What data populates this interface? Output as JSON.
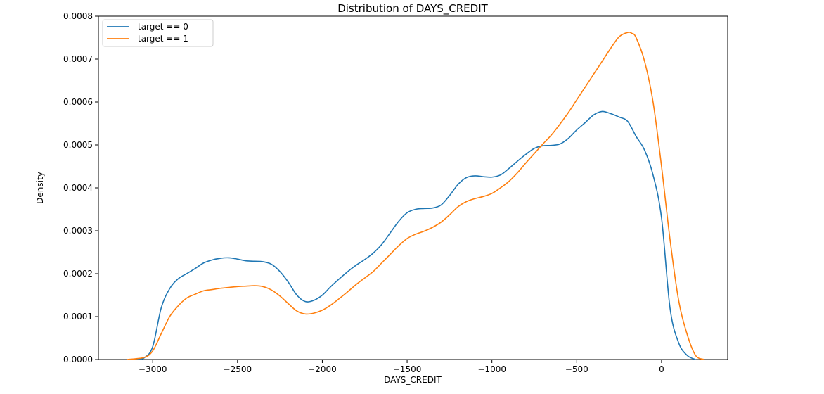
{
  "chart_data": {
    "type": "line",
    "title": "Distribution of DAYS_CREDIT",
    "xlabel": "DAYS_CREDIT",
    "ylabel": "Density",
    "xlim": [
      -3320,
      390
    ],
    "ylim": [
      0,
      0.0008
    ],
    "x_ticks": [
      -3000,
      -2500,
      -2000,
      -1500,
      -1000,
      -500,
      0
    ],
    "x_tick_labels": [
      "−3000",
      "−2500",
      "−2000",
      "−1500",
      "−1000",
      "−500",
      "0"
    ],
    "y_ticks": [
      0,
      0.0001,
      0.0002,
      0.0003,
      0.0004,
      0.0005,
      0.0006,
      0.0007,
      0.0008
    ],
    "y_tick_labels": [
      "0.0000",
      "0.0001",
      "0.0002",
      "0.0003",
      "0.0004",
      "0.0005",
      "0.0006",
      "0.0007",
      "0.0008"
    ],
    "grid": false,
    "legend_position": "top-left",
    "series": [
      {
        "name": "target == 0",
        "color": "#1f77b4",
        "points": [
          [
            -3100,
            0
          ],
          [
            -3050,
            4e-06
          ],
          [
            -3000,
            3e-05
          ],
          [
            -2950,
            0.00012
          ],
          [
            -2900,
            0.000165
          ],
          [
            -2850,
            0.000188
          ],
          [
            -2800,
            0.0002
          ],
          [
            -2750,
            0.000212
          ],
          [
            -2700,
            0.000225
          ],
          [
            -2650,
            0.000232
          ],
          [
            -2600,
            0.000236
          ],
          [
            -2550,
            0.000237
          ],
          [
            -2500,
            0.000234
          ],
          [
            -2450,
            0.00023
          ],
          [
            -2400,
            0.000229
          ],
          [
            -2350,
            0.000228
          ],
          [
            -2300,
            0.000222
          ],
          [
            -2250,
            0.000205
          ],
          [
            -2200,
            0.00018
          ],
          [
            -2150,
            0.00015
          ],
          [
            -2100,
            0.000135
          ],
          [
            -2050,
            0.000138
          ],
          [
            -2000,
            0.00015
          ],
          [
            -1950,
            0.00017
          ],
          [
            -1900,
            0.000188
          ],
          [
            -1850,
            0.000205
          ],
          [
            -1800,
            0.00022
          ],
          [
            -1750,
            0.000233
          ],
          [
            -1700,
            0.000248
          ],
          [
            -1650,
            0.000268
          ],
          [
            -1600,
            0.000295
          ],
          [
            -1550,
            0.000322
          ],
          [
            -1500,
            0.000342
          ],
          [
            -1450,
            0.00035
          ],
          [
            -1400,
            0.000352
          ],
          [
            -1350,
            0.000353
          ],
          [
            -1300,
            0.00036
          ],
          [
            -1250,
            0.000382
          ],
          [
            -1200,
            0.000408
          ],
          [
            -1150,
            0.000424
          ],
          [
            -1100,
            0.000428
          ],
          [
            -1050,
            0.000426
          ],
          [
            -1000,
            0.000425
          ],
          [
            -950,
            0.00043
          ],
          [
            -900,
            0.000445
          ],
          [
            -850,
            0.000462
          ],
          [
            -800,
            0.000478
          ],
          [
            -750,
            0.000492
          ],
          [
            -700,
            0.000498
          ],
          [
            -650,
            0.000499
          ],
          [
            -600,
            0.000502
          ],
          [
            -550,
            0.000515
          ],
          [
            -500,
            0.000535
          ],
          [
            -450,
            0.000552
          ],
          [
            -400,
            0.00057
          ],
          [
            -350,
            0.000578
          ],
          [
            -300,
            0.000573
          ],
          [
            -250,
            0.000565
          ],
          [
            -200,
            0.000555
          ],
          [
            -150,
            0.00052
          ],
          [
            -100,
            0.000488
          ],
          [
            -50,
            0.00043
          ],
          [
            0,
            0.00033
          ],
          [
            50,
            0.00012
          ],
          [
            100,
            4e-05
          ],
          [
            150,
            1e-05
          ],
          [
            200,
            0
          ]
        ]
      },
      {
        "name": "target == 1",
        "color": "#ff7f0e",
        "points": [
          [
            -3150,
            0
          ],
          [
            -3050,
            5e-06
          ],
          [
            -3000,
            2e-05
          ],
          [
            -2950,
            6e-05
          ],
          [
            -2900,
            0.0001
          ],
          [
            -2850,
            0.000125
          ],
          [
            -2800,
            0.000143
          ],
          [
            -2750,
            0.000152
          ],
          [
            -2700,
            0.00016
          ],
          [
            -2650,
            0.000163
          ],
          [
            -2600,
            0.000166
          ],
          [
            -2550,
            0.000168
          ],
          [
            -2500,
            0.00017
          ],
          [
            -2450,
            0.000171
          ],
          [
            -2400,
            0.000172
          ],
          [
            -2350,
            0.00017
          ],
          [
            -2300,
            0.000162
          ],
          [
            -2250,
            0.000148
          ],
          [
            -2200,
            0.00013
          ],
          [
            -2150,
            0.000113
          ],
          [
            -2100,
            0.000106
          ],
          [
            -2050,
            0.000108
          ],
          [
            -2000,
            0.000115
          ],
          [
            -1950,
            0.000127
          ],
          [
            -1900,
            0.000142
          ],
          [
            -1850,
            0.000158
          ],
          [
            -1800,
            0.000175
          ],
          [
            -1750,
            0.00019
          ],
          [
            -1700,
            0.000205
          ],
          [
            -1650,
            0.000225
          ],
          [
            -1600,
            0.000245
          ],
          [
            -1550,
            0.000265
          ],
          [
            -1500,
            0.000282
          ],
          [
            -1450,
            0.000292
          ],
          [
            -1400,
            0.000299
          ],
          [
            -1350,
            0.000308
          ],
          [
            -1300,
            0.00032
          ],
          [
            -1250,
            0.000337
          ],
          [
            -1200,
            0.000356
          ],
          [
            -1150,
            0.000368
          ],
          [
            -1100,
            0.000375
          ],
          [
            -1050,
            0.00038
          ],
          [
            -1000,
            0.000387
          ],
          [
            -950,
            0.0004
          ],
          [
            -900,
            0.000415
          ],
          [
            -850,
            0.000435
          ],
          [
            -800,
            0.000458
          ],
          [
            -750,
            0.00048
          ],
          [
            -700,
            0.000502
          ],
          [
            -650,
            0.000523
          ],
          [
            -600,
            0.000548
          ],
          [
            -550,
            0.000575
          ],
          [
            -500,
            0.000605
          ],
          [
            -450,
            0.000635
          ],
          [
            -400,
            0.000665
          ],
          [
            -350,
            0.000695
          ],
          [
            -300,
            0.000725
          ],
          [
            -250,
            0.000752
          ],
          [
            -200,
            0.000762
          ],
          [
            -175,
            0.00076
          ],
          [
            -150,
            0.00075
          ],
          [
            -100,
            0.000695
          ],
          [
            -50,
            0.0006
          ],
          [
            0,
            0.00045
          ],
          [
            50,
            0.00028
          ],
          [
            100,
            0.00014
          ],
          [
            150,
            6e-05
          ],
          [
            200,
            1e-05
          ],
          [
            250,
            0
          ]
        ]
      }
    ]
  }
}
